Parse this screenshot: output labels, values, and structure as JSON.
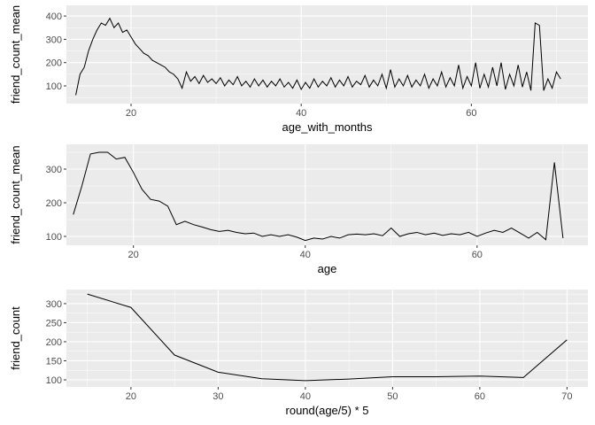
{
  "chart_data": [
    {
      "type": "line",
      "color": "#000000",
      "x_label": "age_with_months",
      "y_label": "friend_count_mean",
      "x": [
        13.5,
        14,
        14.5,
        15,
        15.5,
        16,
        16.5,
        17,
        17.5,
        18,
        18.5,
        19,
        19.5,
        20,
        20.5,
        21,
        21.5,
        22,
        22.5,
        23,
        23.5,
        24,
        24.5,
        25,
        25.5,
        26,
        26.5,
        27,
        27.5,
        28,
        28.5,
        29,
        29.5,
        30,
        30.5,
        31,
        31.5,
        32,
        32.5,
        33,
        33.5,
        34,
        34.5,
        35,
        35.5,
        36,
        36.5,
        37,
        37.5,
        38,
        38.5,
        39,
        39.5,
        40,
        40.5,
        41,
        41.5,
        42,
        42.5,
        43,
        43.5,
        44,
        44.5,
        45,
        45.5,
        46,
        46.5,
        47,
        47.5,
        48,
        48.5,
        49,
        49.5,
        50,
        50.5,
        51,
        51.5,
        52,
        52.5,
        53,
        53.5,
        54,
        54.5,
        55,
        55.5,
        56,
        56.5,
        57,
        57.5,
        58,
        58.5,
        59,
        59.5,
        60,
        60.5,
        61,
        61.5,
        62,
        62.5,
        63,
        63.5,
        64,
        64.5,
        65,
        65.5,
        66,
        66.5,
        67,
        67.5,
        68,
        68.5,
        69,
        69.5,
        70,
        70.5
      ],
      "values": [
        60,
        150,
        180,
        250,
        300,
        340,
        370,
        360,
        390,
        350,
        370,
        330,
        340,
        310,
        280,
        260,
        240,
        230,
        210,
        200,
        190,
        180,
        160,
        150,
        130,
        90,
        160,
        120,
        140,
        110,
        145,
        115,
        130,
        110,
        135,
        100,
        125,
        105,
        140,
        100,
        120,
        95,
        130,
        100,
        125,
        95,
        120,
        100,
        130,
        95,
        115,
        90,
        125,
        85,
        115,
        90,
        130,
        95,
        120,
        100,
        135,
        95,
        125,
        100,
        140,
        95,
        120,
        105,
        145,
        95,
        125,
        100,
        150,
        90,
        170,
        95,
        130,
        100,
        145,
        95,
        125,
        100,
        150,
        90,
        130,
        100,
        160,
        95,
        135,
        100,
        190,
        90,
        140,
        100,
        200,
        90,
        150,
        95,
        180,
        100,
        200,
        85,
        150,
        100,
        190,
        95,
        160,
        80,
        370,
        360,
        80,
        130,
        90,
        160,
        130
      ],
      "xlim": [
        12.4,
        73.7
      ],
      "ylim": [
        24,
        446
      ],
      "xticks": [
        20,
        40,
        60
      ],
      "yticks": [
        100,
        200,
        300,
        400
      ]
    },
    {
      "type": "line",
      "color": "#000000",
      "x_label": "age",
      "y_label": "friend_count_mean",
      "x": [
        13,
        14,
        15,
        16,
        17,
        18,
        19,
        20,
        21,
        22,
        23,
        24,
        25,
        26,
        27,
        28,
        29,
        30,
        31,
        32,
        33,
        34,
        35,
        36,
        37,
        38,
        39,
        40,
        41,
        42,
        43,
        44,
        45,
        46,
        47,
        48,
        49,
        50,
        51,
        52,
        53,
        54,
        55,
        56,
        57,
        58,
        59,
        60,
        61,
        62,
        63,
        64,
        65,
        66,
        67,
        68,
        69,
        70
      ],
      "values": [
        165,
        250,
        345,
        350,
        350,
        330,
        335,
        290,
        240,
        210,
        205,
        190,
        135,
        145,
        135,
        128,
        120,
        115,
        118,
        112,
        108,
        110,
        100,
        105,
        100,
        105,
        98,
        88,
        95,
        92,
        100,
        95,
        105,
        107,
        105,
        108,
        102,
        125,
        100,
        108,
        112,
        105,
        110,
        103,
        108,
        105,
        112,
        100,
        110,
        118,
        112,
        125,
        110,
        95,
        112,
        90,
        320,
        95
      ],
      "xlim": [
        12.2,
        72.9
      ],
      "ylim": [
        73.7,
        373.7
      ],
      "xticks": [
        20,
        40,
        60
      ],
      "yticks": [
        100,
        200,
        300
      ]
    },
    {
      "type": "line",
      "color": "#000000",
      "x_label": "round(age/5) * 5",
      "y_label": "friend_count",
      "x": [
        15,
        20,
        25,
        30,
        35,
        40,
        45,
        50,
        55,
        60,
        65,
        70
      ],
      "values": [
        325,
        290,
        165,
        120,
        103,
        98,
        102,
        108,
        108,
        110,
        106,
        205
      ],
      "xlim": [
        12.6,
        72.4
      ],
      "ylim": [
        81.4,
        337
      ],
      "xticks": [
        20,
        30,
        40,
        50,
        60,
        70
      ],
      "yticks": [
        100,
        150,
        200,
        250,
        300
      ]
    }
  ]
}
